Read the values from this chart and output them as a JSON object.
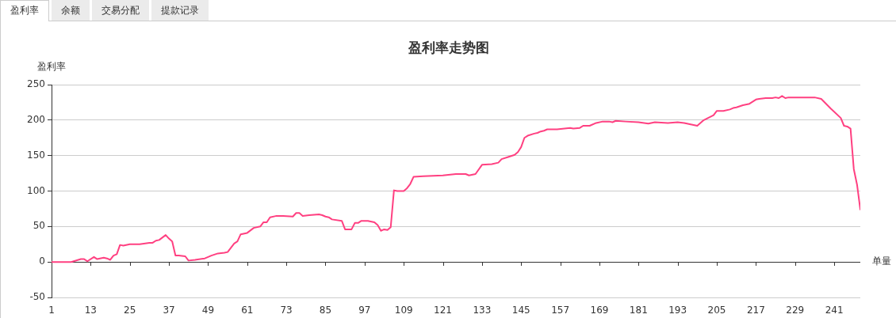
{
  "chart_data": {
    "type": "line",
    "title": "盈利率走势图",
    "ylabel": "盈利率",
    "xlabel": "单量",
    "annotations": [
      "盈利率",
      "余额",
      "交易分配",
      "提款记录"
    ],
    "x": [
      1,
      3,
      7,
      10,
      11,
      12,
      14,
      15,
      17,
      18,
      19,
      20,
      21,
      22,
      23,
      25,
      28,
      31,
      32,
      33,
      34,
      36,
      37,
      38,
      39,
      40,
      42,
      43,
      45,
      48,
      50,
      52,
      54,
      55,
      57,
      58,
      59,
      61,
      63,
      65,
      66,
      67,
      68,
      70,
      72,
      75,
      76,
      77,
      78,
      80,
      83,
      84,
      85,
      86,
      87,
      90,
      91,
      93,
      94,
      95,
      96,
      98,
      100,
      101,
      102,
      103,
      104,
      105,
      106,
      107,
      109,
      110,
      111,
      112,
      115,
      121,
      125,
      128,
      129,
      131,
      133,
      136,
      138,
      139,
      141,
      143,
      144,
      145,
      146,
      147,
      149,
      150,
      151,
      152,
      153,
      156,
      160,
      161,
      163,
      164,
      166,
      168,
      170,
      172,
      173,
      174,
      177,
      181,
      184,
      186,
      190,
      193,
      195,
      199,
      201,
      204,
      205,
      207,
      209,
      210,
      211,
      213,
      215,
      217,
      218,
      220,
      222,
      223,
      224,
      225,
      226,
      227,
      231,
      234,
      235,
      237,
      240,
      243,
      244,
      245,
      246,
      247,
      248,
      249
    ],
    "series": [
      {
        "color": "#ff4081",
        "values": [
          0,
          0,
          0,
          4,
          4,
          1,
          7,
          4,
          6,
          5,
          3,
          9,
          11,
          24,
          23,
          25,
          25,
          27,
          27,
          30,
          31,
          38,
          33,
          29,
          9,
          9,
          8,
          2,
          3,
          5,
          9,
          12,
          13,
          14,
          26,
          29,
          39,
          41,
          48,
          50,
          56,
          56,
          63,
          65,
          65,
          64,
          69,
          69,
          65,
          66,
          67,
          66,
          64,
          63,
          60,
          58,
          46,
          46,
          55,
          55,
          58,
          58,
          56,
          52,
          44,
          46,
          45,
          49,
          101,
          100,
          100,
          104,
          110,
          120,
          121,
          122,
          124,
          124,
          122,
          124,
          137,
          138,
          140,
          145,
          148,
          151,
          155,
          162,
          175,
          178,
          181,
          182,
          184,
          185,
          187,
          187,
          189,
          188,
          189,
          192,
          192,
          196,
          198,
          198,
          197,
          199,
          198,
          197,
          195,
          197,
          196,
          197,
          196,
          192,
          200,
          207,
          213,
          213,
          215,
          217,
          218,
          221,
          223,
          229,
          230,
          231,
          231,
          232,
          231,
          234,
          231,
          232,
          232,
          232,
          232,
          230,
          216,
          203,
          192,
          191,
          188,
          131,
          109,
          74
        ]
      }
    ],
    "xlim": [
      1,
      249
    ],
    "xticks": [
      1,
      13,
      25,
      37,
      49,
      61,
      73,
      85,
      97,
      109,
      121,
      133,
      145,
      157,
      169,
      181,
      193,
      205,
      217,
      229,
      241
    ],
    "ylim": [
      -50,
      250
    ],
    "yticks": [
      -50,
      0,
      50,
      100,
      150,
      200,
      250
    ],
    "grid": "y",
    "marker": "none",
    "line_style": "solid"
  }
}
